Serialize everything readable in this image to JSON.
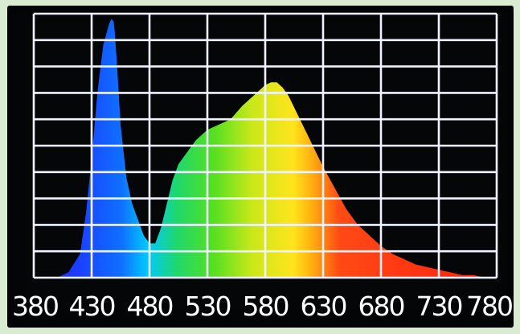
{
  "chart_data": {
    "type": "area",
    "title": "",
    "xlabel": "",
    "ylabel": "",
    "xlim": [
      380,
      780
    ],
    "ylim": [
      0,
      1
    ],
    "grid": true,
    "x_ticks": [
      "380",
      "430",
      "480",
      "530",
      "580",
      "630",
      "680",
      "730",
      "780"
    ],
    "x": [
      380,
      400,
      410,
      420,
      425,
      430,
      435,
      440,
      445,
      447,
      449,
      450,
      452,
      455,
      460,
      465,
      470,
      475,
      480,
      485,
      490,
      495,
      500,
      505,
      510,
      520,
      530,
      540,
      550,
      560,
      570,
      580,
      585,
      590,
      595,
      600,
      610,
      620,
      630,
      640,
      650,
      660,
      670,
      680,
      690,
      700,
      710,
      720,
      730,
      740,
      750,
      760,
      770,
      780
    ],
    "y": [
      0.0,
      0.0,
      0.02,
      0.09,
      0.24,
      0.45,
      0.7,
      0.88,
      0.96,
      0.98,
      0.97,
      0.93,
      0.8,
      0.58,
      0.38,
      0.28,
      0.22,
      0.16,
      0.13,
      0.13,
      0.19,
      0.28,
      0.37,
      0.43,
      0.46,
      0.52,
      0.56,
      0.58,
      0.6,
      0.65,
      0.69,
      0.73,
      0.74,
      0.74,
      0.72,
      0.69,
      0.6,
      0.51,
      0.42,
      0.34,
      0.26,
      0.2,
      0.16,
      0.12,
      0.09,
      0.07,
      0.05,
      0.04,
      0.03,
      0.02,
      0.01,
      0.01,
      0.0,
      0.0
    ],
    "colors": {
      "grid": "#eef3ff",
      "background": "#050608",
      "spectrum": [
        "#1f2dff",
        "#1650ff",
        "#00c8ff",
        "#20e070",
        "#b8e020",
        "#ffe020",
        "#ff8a10",
        "#ff2a12"
      ]
    }
  }
}
